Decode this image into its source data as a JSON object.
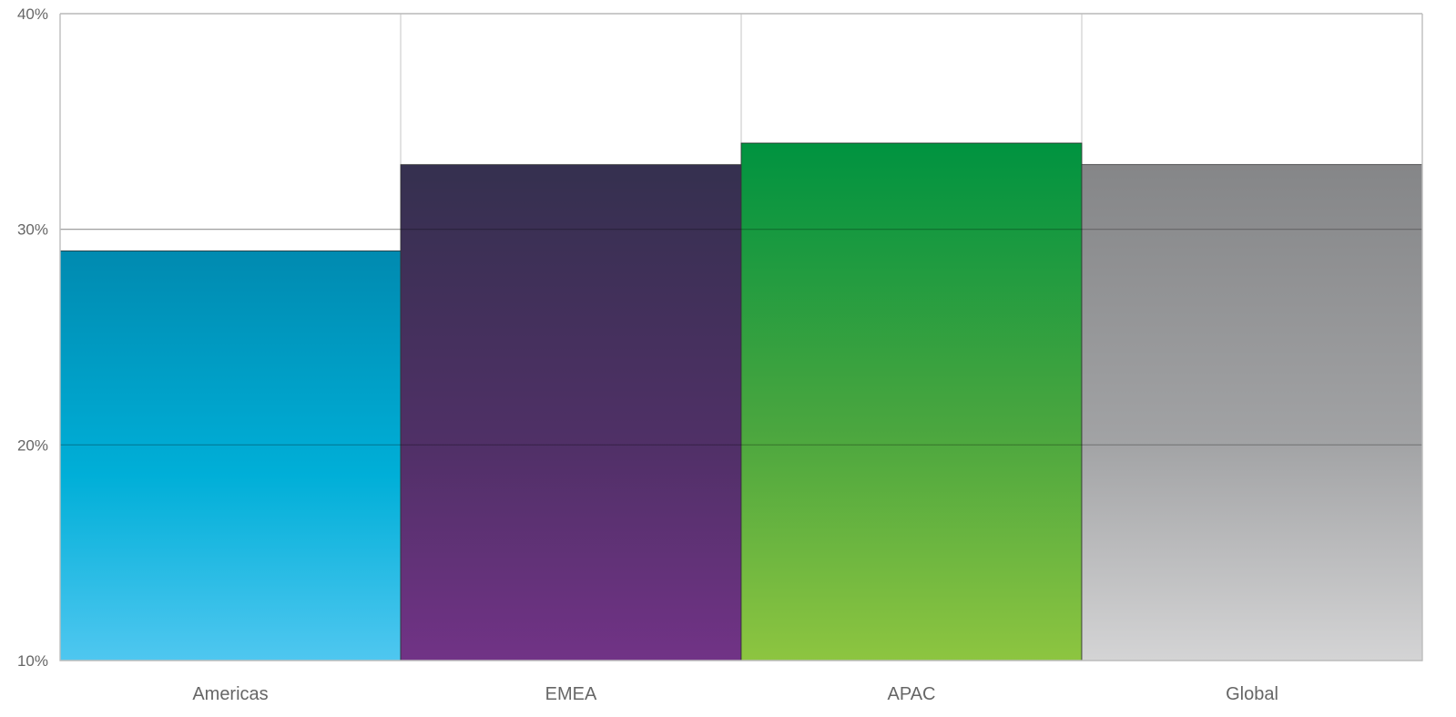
{
  "chart_data": {
    "type": "bar",
    "title": "",
    "xlabel": "",
    "ylabel": "",
    "categories": [
      "Americas",
      "EMEA",
      "APAC",
      "Global"
    ],
    "values": [
      29,
      33,
      34,
      33
    ],
    "ylim": [
      10,
      40
    ],
    "yticks": [
      10,
      20,
      30,
      40
    ],
    "ytick_labels": [
      "10%",
      "20%",
      "30%",
      "40%"
    ],
    "grid": true,
    "legend": "none",
    "colors": {
      "gridline": "#cfcfcf",
      "axis": "#bdbdbd",
      "bar_stroke": "#333333",
      "bars": [
        {
          "top": "#008ab0",
          "mid": "#00afd8",
          "bottom": "#4fc7f0"
        },
        {
          "top": "#35304f",
          "mid": "#4f3066",
          "bottom": "#713386"
        },
        {
          "top": "#009340",
          "mid": "#4aa63f",
          "bottom": "#8dc540"
        },
        {
          "top": "#858688",
          "mid": "#a1a2a4",
          "bottom": "#d4d4d5"
        }
      ]
    }
  }
}
